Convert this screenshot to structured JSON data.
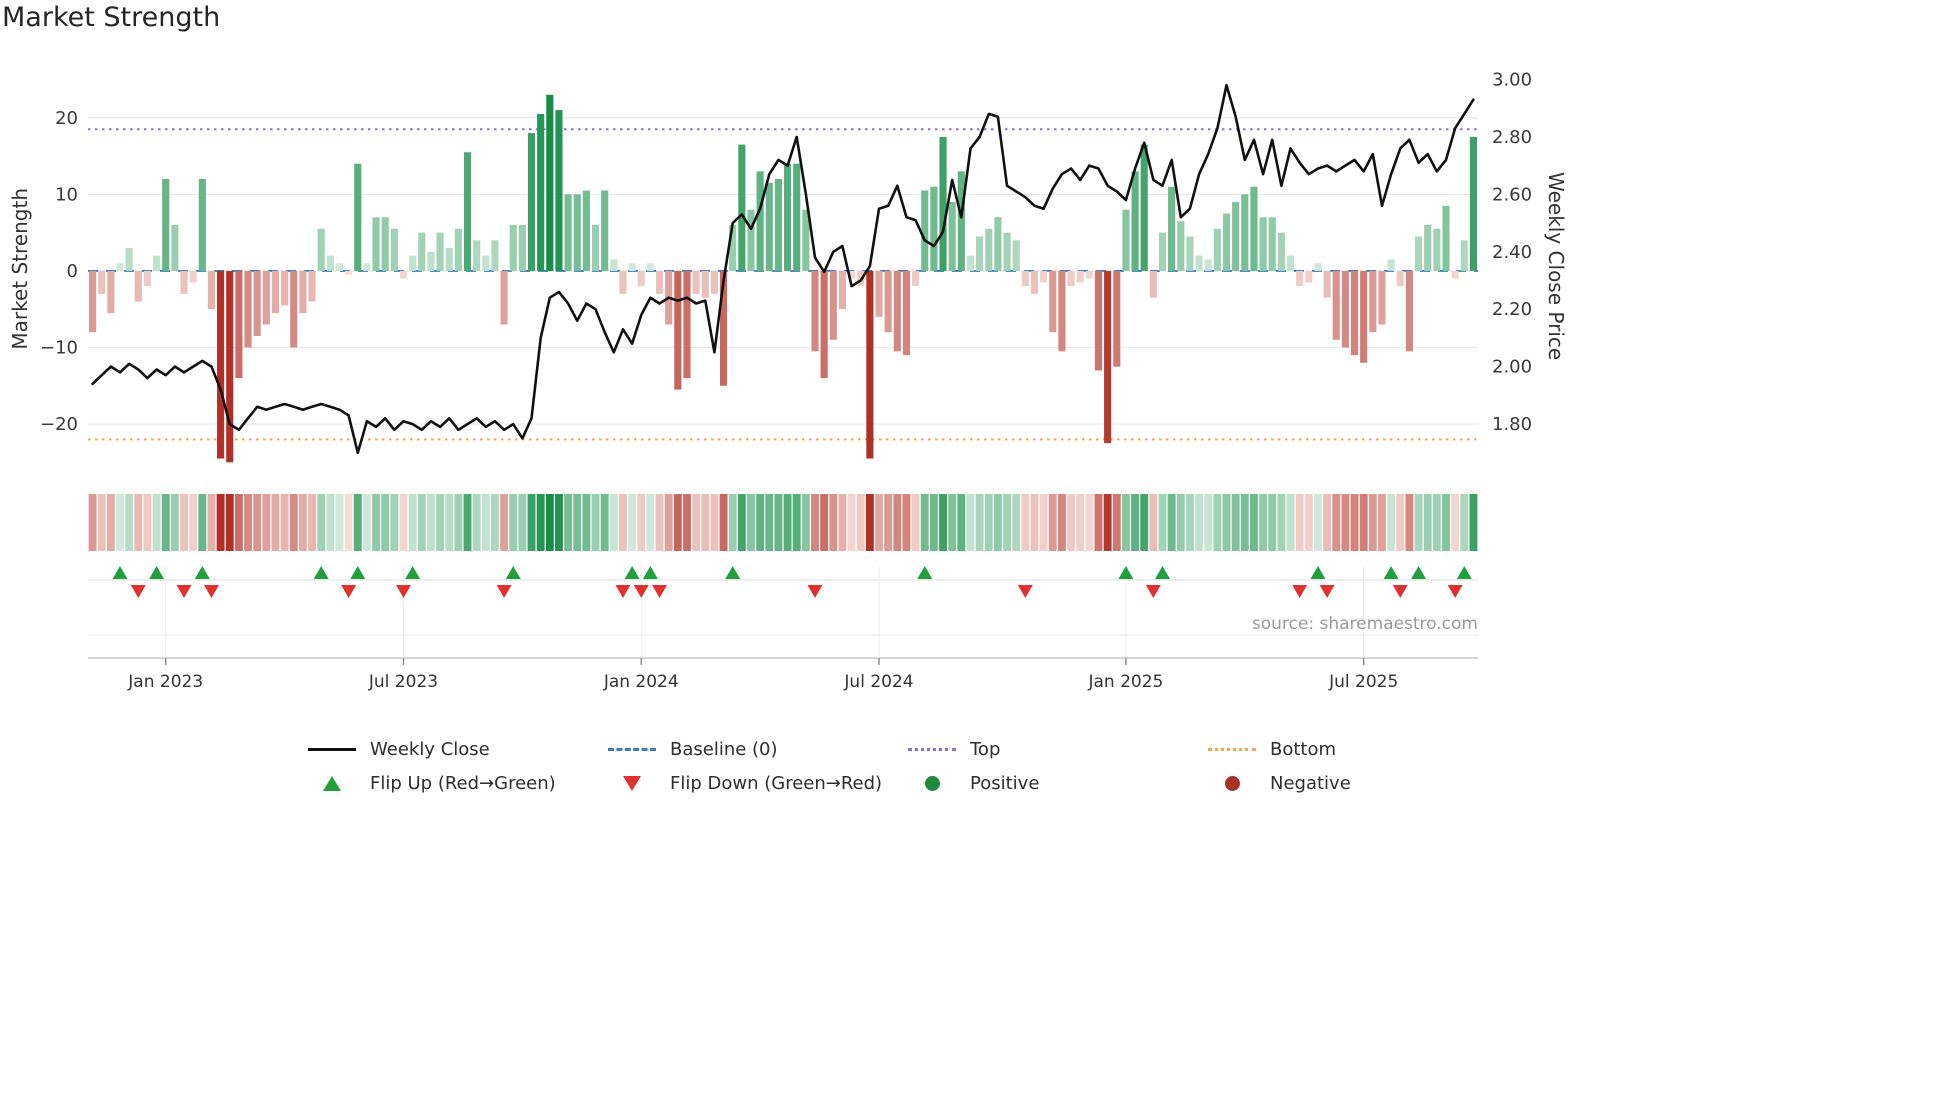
{
  "title": "Market Strength",
  "source": "source: sharemaestro.com",
  "axes": {
    "left_label": "Market Strength",
    "right_label": "Weekly Close Price",
    "left_ticks": [
      {
        "label": "20",
        "value": 20
      },
      {
        "label": "10",
        "value": 10
      },
      {
        "label": "0",
        "value": 0
      },
      {
        "label": "−10",
        "value": -10
      },
      {
        "label": "−20",
        "value": -20
      }
    ],
    "right_ticks": [
      {
        "label": "3.00",
        "value": 3.0
      },
      {
        "label": "2.80",
        "value": 2.8
      },
      {
        "label": "2.60",
        "value": 2.6
      },
      {
        "label": "2.40",
        "value": 2.4
      },
      {
        "label": "2.20",
        "value": 2.2
      },
      {
        "label": "2.00",
        "value": 2.0
      },
      {
        "label": "1.80",
        "value": 1.8
      }
    ],
    "x_ticks": [
      {
        "label": "Jan 2023",
        "index": 8
      },
      {
        "label": "Jul 2023",
        "index": 34
      },
      {
        "label": "Jan 2024",
        "index": 60
      },
      {
        "label": "Jul 2024",
        "index": 86
      },
      {
        "label": "Jan 2025",
        "index": 113
      },
      {
        "label": "Jul 2025",
        "index": 139
      }
    ]
  },
  "colors": {
    "line": "#111111",
    "baseline": "#3a7ebf",
    "top": "#8f70cf",
    "bottom": "#f5a54a",
    "flip_up": "#1fa03c",
    "flip_down": "#e03131",
    "positive": "#1e8a3c",
    "negative": "#a93226",
    "bar_pos_strong": "#0e8a42",
    "bar_pos_weak": "#dff0e6",
    "bar_neg_strong": "#b03028",
    "bar_neg_weak": "#f9e4df",
    "grid": "#e9e9e9"
  },
  "legend": {
    "items": [
      {
        "label": "Weekly Close"
      },
      {
        "label": "Baseline (0)"
      },
      {
        "label": "Top"
      },
      {
        "label": "Bottom"
      },
      {
        "label": "Flip Up (Red→Green)"
      },
      {
        "label": "Flip Down (Green→Red)"
      },
      {
        "label": "Positive"
      },
      {
        "label": "Negative"
      }
    ]
  },
  "chart_data": [
    {
      "type": "bar",
      "name": "market_strength",
      "title": "Market Strength",
      "ylabel": "Market Strength",
      "x_start_date": "2022-11-07",
      "x_interval": "weekly",
      "ylim": [
        -26,
        26.5
      ],
      "baseline": 0,
      "top_line": 18.5,
      "bottom_line": -22,
      "values": [
        -8,
        -3,
        -5.5,
        1,
        3,
        -4,
        -2,
        2,
        12,
        6,
        -3,
        -1.5,
        12,
        -5,
        -24.5,
        -25,
        -14,
        -10,
        -8.5,
        -7,
        -5.5,
        -4.5,
        -10,
        -5.5,
        -4,
        5.5,
        2,
        1,
        -0.5,
        14,
        1,
        7,
        7,
        5.5,
        -1,
        2,
        5,
        2.5,
        5,
        3,
        5.5,
        15.5,
        4,
        2,
        4,
        -7,
        6,
        6,
        18,
        20.5,
        23,
        21,
        10,
        10,
        10.5,
        6,
        10.5,
        1.5,
        -3,
        1,
        -2,
        1,
        -3,
        -7,
        -15.5,
        -14,
        -3,
        -3.5,
        -3,
        -15,
        6,
        16.5,
        8,
        13,
        11.5,
        12,
        14,
        14,
        8,
        -10.5,
        -14,
        -9,
        -5,
        -1,
        -2,
        -24.5,
        -6,
        -8,
        -10.5,
        -11,
        -2,
        10.5,
        11,
        17.5,
        9,
        13,
        2,
        4.5,
        5.5,
        7,
        5,
        4,
        -2,
        -3,
        -1.5,
        -8,
        -10.5,
        -2,
        -1.5,
        -1,
        -13,
        -22.5,
        -12.5,
        8,
        13,
        16.5,
        -3.5,
        5,
        11,
        6.5,
        4.5,
        2,
        1.5,
        5.5,
        7.5,
        9,
        10,
        11,
        7,
        7,
        5,
        2,
        -2,
        -1.5,
        1,
        -3.5,
        -9,
        -10,
        -11,
        -12,
        -8,
        -7,
        1.5,
        -2,
        -10.5,
        4.5,
        6,
        5.5,
        8.5,
        -1,
        4,
        17.5
      ]
    },
    {
      "type": "line",
      "name": "weekly_close",
      "title": "Weekly Close",
      "ylabel": "Weekly Close Price",
      "ylim": [
        1.64,
        3.04
      ],
      "values": [
        1.94,
        1.97,
        2.0,
        1.98,
        2.01,
        1.99,
        1.96,
        1.99,
        1.97,
        2.0,
        1.98,
        2.0,
        2.02,
        2.0,
        1.92,
        1.8,
        1.78,
        1.82,
        1.86,
        1.85,
        1.86,
        1.87,
        1.86,
        1.85,
        1.86,
        1.87,
        1.86,
        1.85,
        1.83,
        1.7,
        1.81,
        1.79,
        1.82,
        1.78,
        1.81,
        1.8,
        1.78,
        1.81,
        1.79,
        1.82,
        1.78,
        1.8,
        1.82,
        1.79,
        1.81,
        1.78,
        1.8,
        1.75,
        1.82,
        2.1,
        2.24,
        2.26,
        2.22,
        2.16,
        2.22,
        2.2,
        2.12,
        2.05,
        2.13,
        2.08,
        2.18,
        2.24,
        2.22,
        2.24,
        2.23,
        2.24,
        2.22,
        2.23,
        2.05,
        2.3,
        2.5,
        2.53,
        2.48,
        2.55,
        2.67,
        2.72,
        2.7,
        2.8,
        2.6,
        2.38,
        2.33,
        2.4,
        2.42,
        2.28,
        2.3,
        2.35,
        2.55,
        2.56,
        2.63,
        2.52,
        2.51,
        2.44,
        2.42,
        2.47,
        2.65,
        2.52,
        2.76,
        2.8,
        2.88,
        2.87,
        2.63,
        2.61,
        2.59,
        2.56,
        2.55,
        2.62,
        2.67,
        2.69,
        2.65,
        2.7,
        2.69,
        2.63,
        2.61,
        2.58,
        2.69,
        2.78,
        2.65,
        2.63,
        2.72,
        2.52,
        2.55,
        2.67,
        2.74,
        2.83,
        2.98,
        2.87,
        2.72,
        2.79,
        2.67,
        2.79,
        2.63,
        2.76,
        2.71,
        2.67,
        2.69,
        2.7,
        2.68,
        2.7,
        2.72,
        2.68,
        2.74,
        2.56,
        2.67,
        2.76,
        2.79,
        2.71,
        2.74,
        2.68,
        2.72,
        2.83,
        2.88,
        2.93
      ]
    },
    {
      "type": "heatmap",
      "name": "strength_heatmap",
      "source_series": "market_strength"
    },
    {
      "type": "scatter",
      "name": "flip_markers",
      "flip_up_indices": [
        3,
        7,
        12,
        25,
        29,
        35,
        46,
        59,
        61,
        70,
        91,
        113,
        117,
        134,
        142,
        145,
        150
      ],
      "flip_down_indices": [
        5,
        10,
        13,
        28,
        34,
        45,
        58,
        60,
        62,
        79,
        102,
        116,
        132,
        135,
        143,
        149
      ]
    }
  ]
}
